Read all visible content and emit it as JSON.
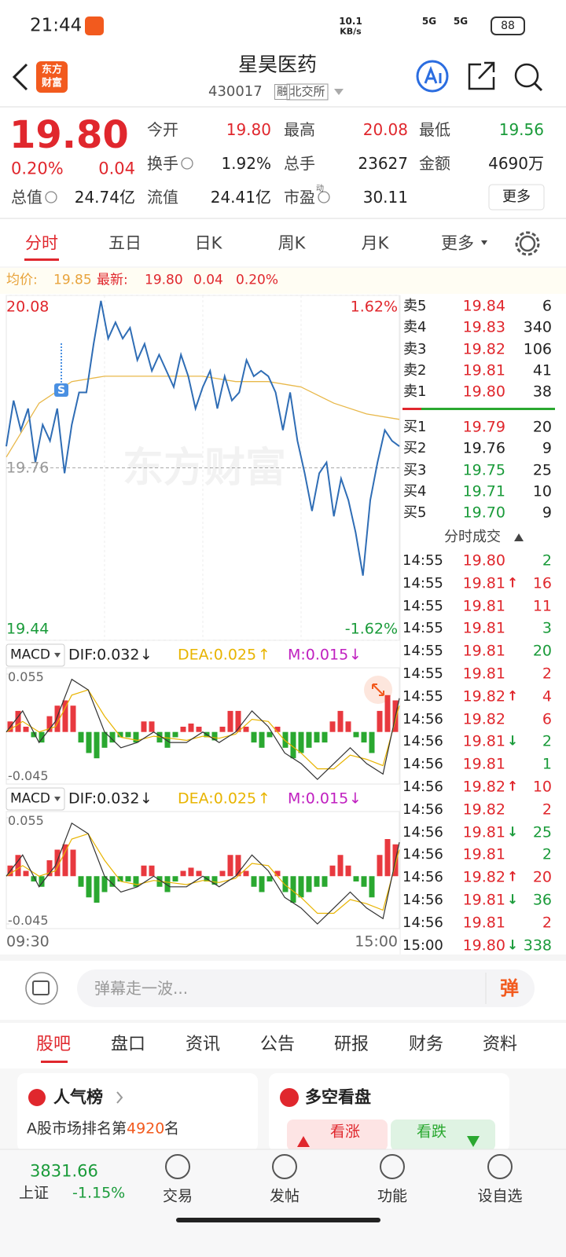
{
  "status_bar": {
    "time": "21:44",
    "net_speed": "10.1",
    "net_unit": "KB/s",
    "signal": [
      "5G",
      "5G"
    ],
    "battery": "88"
  },
  "header": {
    "logo": [
      "东方",
      "财富"
    ],
    "title": "星昊医药",
    "code": "430017",
    "badge": "融",
    "exchange": "北交所"
  },
  "quote": {
    "price": "19.80",
    "change_pct": "0.20%",
    "change": "0.04",
    "color": "#e0272d",
    "fields": [
      {
        "label": "今开",
        "value": "19.80",
        "color": "#e0272d",
        "row": 0,
        "col": 1
      },
      {
        "label": "最高",
        "value": "20.08",
        "color": "#e0272d",
        "row": 0,
        "col": 2
      },
      {
        "label": "最低",
        "value": "19.56",
        "color": "#1a9b3a",
        "row": 0,
        "col": 3
      },
      {
        "label": "换手",
        "value": "1.92%",
        "color": "#222222",
        "row": 1,
        "col": 1,
        "hint": true
      },
      {
        "label": "总手",
        "value": "23627",
        "color": "#222222",
        "row": 1,
        "col": 2
      },
      {
        "label": "金额",
        "value": "4690万",
        "color": "#222222",
        "row": 1,
        "col": 3
      },
      {
        "label": "总值",
        "value": "24.74亿",
        "color": "#222222",
        "row": 2,
        "col": 0,
        "hint": true
      },
      {
        "label": "流值",
        "value": "24.41亿",
        "color": "#222222",
        "row": 2,
        "col": 1
      },
      {
        "label": "市盈",
        "sup": "动",
        "value": "30.11",
        "color": "#222222",
        "row": 2,
        "col": 2,
        "hint": true
      }
    ],
    "more": "更多"
  },
  "tabs": [
    "分时",
    "五日",
    "日K",
    "周K",
    "月K",
    "更多"
  ],
  "info": {
    "avg_label": "均价:",
    "avg": "19.85",
    "last_label": "最新:",
    "last": "19.80",
    "change": "0.04",
    "change_pct": "0.20%"
  },
  "intraday": {
    "ylim": [
      19.44,
      20.08
    ],
    "yticks": [
      20.08,
      19.76,
      19.44
    ],
    "pct_labels": [
      "1.62%",
      "-1.62%"
    ],
    "watermark": "东方财富",
    "price_color": "#2f6db5",
    "avg_color": "#e8b84a",
    "trade_marker": "S",
    "xlabels": [
      "09:30",
      "15:00"
    ],
    "price": [
      19.8,
      19.885,
      19.83,
      19.87,
      19.77,
      19.84,
      19.81,
      19.87,
      19.75,
      19.84,
      19.9,
      19.9,
      19.99,
      20.07,
      20.0,
      20.03,
      20.0,
      20.02,
      19.96,
      19.99,
      19.94,
      19.97,
      19.94,
      19.91,
      19.97,
      19.93,
      19.87,
      19.91,
      19.94,
      19.87,
      19.93,
      19.885,
      19.9,
      19.96,
      19.93,
      19.94,
      19.93,
      19.9,
      19.83,
      19.9,
      19.81,
      19.75,
      19.68,
      19.75,
      19.77,
      19.67,
      19.74,
      19.7,
      19.64,
      19.56,
      19.7,
      19.77,
      19.83,
      19.81,
      19.8
    ],
    "avg": [
      19.78,
      19.88,
      19.92,
      19.93,
      19.93,
      19.93,
      19.93,
      19.92,
      19.92,
      19.91,
      19.88,
      19.86,
      19.85
    ]
  },
  "macd": {
    "label": "MACD",
    "dif": "DIF:0.032",
    "dif_arrow": "↓",
    "dea": "DEA:0.025",
    "dea_arrow": "↑",
    "m": "M:0.015",
    "m_arrow": "↓",
    "ylim": [
      -0.045,
      0.055
    ],
    "yticks": [
      0.055,
      -0.045
    ],
    "histogram": [
      0.01,
      0.02,
      0.005,
      -0.005,
      -0.01,
      0.015,
      0.025,
      0.03,
      0.025,
      -0.01,
      -0.02,
      -0.025,
      -0.015,
      -0.01,
      -0.005,
      -0.005,
      -0.01,
      0.01,
      0.01,
      -0.01,
      -0.015,
      -0.005,
      0.005,
      0.008,
      0.005,
      -0.005,
      -0.008,
      0.005,
      0.02,
      0.02,
      0.005,
      -0.01,
      -0.015,
      -0.005,
      0.005,
      -0.015,
      -0.025,
      -0.02,
      -0.015,
      -0.01,
      -0.01,
      0.01,
      0.02,
      0.01,
      -0.005,
      -0.01,
      -0.02,
      0.02,
      0.035,
      0.03
    ],
    "dif_line": [
      0.0,
      0.02,
      -0.01,
      0.01,
      0.05,
      0.04,
      0.0,
      -0.015,
      -0.01,
      0.0,
      -0.01,
      -0.01,
      0.0,
      -0.01,
      0.0,
      0.02,
      0.005,
      -0.02,
      -0.03,
      -0.045,
      -0.03,
      -0.015,
      -0.03,
      -0.04,
      0.032
    ],
    "dea_line": [
      0.0,
      0.01,
      0.0,
      0.005,
      0.035,
      0.04,
      0.015,
      -0.005,
      -0.008,
      -0.004,
      -0.006,
      -0.008,
      -0.004,
      -0.006,
      -0.002,
      0.012,
      0.01,
      -0.008,
      -0.02,
      -0.035,
      -0.035,
      -0.022,
      -0.026,
      -0.032,
      0.025
    ]
  },
  "order_book": {
    "asks": [
      {
        "label": "卖5",
        "price": "19.84",
        "volume": "6",
        "color": "#e0272d"
      },
      {
        "label": "卖4",
        "price": "19.83",
        "volume": "340",
        "color": "#e0272d"
      },
      {
        "label": "卖3",
        "price": "19.82",
        "volume": "106",
        "color": "#e0272d"
      },
      {
        "label": "卖2",
        "price": "19.81",
        "volume": "41",
        "color": "#e0272d"
      },
      {
        "label": "卖1",
        "price": "19.80",
        "volume": "38",
        "color": "#e0272d"
      }
    ],
    "bids": [
      {
        "label": "买1",
        "price": "19.79",
        "volume": "20",
        "color": "#e0272d"
      },
      {
        "label": "买2",
        "price": "19.76",
        "volume": "9",
        "color": "#222222"
      },
      {
        "label": "买3",
        "price": "19.75",
        "volume": "25",
        "color": "#1a9b3a"
      },
      {
        "label": "买4",
        "price": "19.71",
        "volume": "10",
        "color": "#1a9b3a"
      },
      {
        "label": "买5",
        "price": "19.70",
        "volume": "9",
        "color": "#1a9b3a"
      }
    ],
    "trades_title": "分时成交"
  },
  "trades": [
    {
      "time": "14:55",
      "price": "19.80",
      "volume": "2",
      "color": "#1a9b3a"
    },
    {
      "time": "14:55",
      "price": "19.81",
      "arrow": "↑",
      "volume": "16",
      "color": "#e0272d"
    },
    {
      "time": "14:55",
      "price": "19.81",
      "volume": "11",
      "color": "#e0272d"
    },
    {
      "time": "14:55",
      "price": "19.81",
      "volume": "3",
      "color": "#1a9b3a"
    },
    {
      "time": "14:55",
      "price": "19.81",
      "volume": "20",
      "color": "#1a9b3a"
    },
    {
      "time": "14:55",
      "price": "19.81",
      "volume": "2",
      "color": "#e0272d"
    },
    {
      "time": "14:55",
      "price": "19.82",
      "arrow": "↑",
      "volume": "4",
      "color": "#e0272d"
    },
    {
      "time": "14:56",
      "price": "19.82",
      "volume": "6",
      "color": "#e0272d"
    },
    {
      "time": "14:56",
      "price": "19.81",
      "arrow": "↓",
      "volume": "2",
      "color": "#1a9b3a"
    },
    {
      "time": "14:56",
      "price": "19.81",
      "volume": "1",
      "color": "#1a9b3a"
    },
    {
      "time": "14:56",
      "price": "19.82",
      "arrow": "↑",
      "volume": "10",
      "color": "#e0272d"
    },
    {
      "time": "14:56",
      "price": "19.82",
      "volume": "2",
      "color": "#e0272d"
    },
    {
      "time": "14:56",
      "price": "19.81",
      "arrow": "↓",
      "volume": "25",
      "color": "#1a9b3a"
    },
    {
      "time": "14:56",
      "price": "19.81",
      "volume": "2",
      "color": "#1a9b3a"
    },
    {
      "time": "14:56",
      "price": "19.82",
      "arrow": "↑",
      "volume": "20",
      "color": "#e0272d"
    },
    {
      "time": "14:56",
      "price": "19.81",
      "arrow": "↓",
      "volume": "36",
      "color": "#1a9b3a"
    },
    {
      "time": "14:56",
      "price": "19.81",
      "volume": "2",
      "color": "#e0272d"
    },
    {
      "time": "15:00",
      "price": "19.80",
      "arrow": "↓",
      "volume": "338",
      "color": "#1a9b3a"
    }
  ],
  "comment_bar": {
    "placeholder": "弹幕走一波...",
    "button": "弹"
  },
  "section_tabs": [
    "股吧",
    "盘口",
    "资讯",
    "公告",
    "研报",
    "财务",
    "资料"
  ],
  "cards": [
    {
      "title": "人气榜",
      "text_prefix": "A股市场排名第",
      "rank": "4920",
      "text_suffix": "名"
    },
    {
      "title": "多空看盘",
      "bull": "看涨",
      "bear": "看跌"
    }
  ],
  "bottom_nav": {
    "index_value": "3831.66",
    "index_name": "上证",
    "index_change": "-1.15%",
    "items": [
      "交易",
      "发帖",
      "功能",
      "设自选"
    ]
  }
}
